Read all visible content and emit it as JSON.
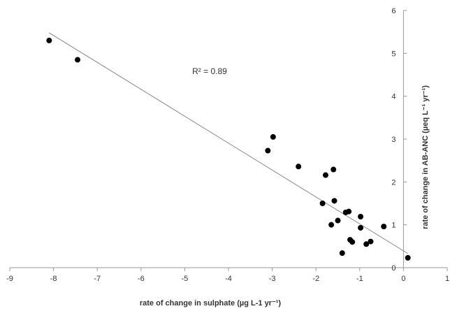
{
  "chart_data": {
    "type": "scatter",
    "title": "",
    "xlabel": "rate of change in sulphate (µg L-1  yr⁻¹)",
    "ylabel": "rate of change in AB-ANC (µeq  L⁻¹  yr⁻¹)",
    "xlim": [
      -9,
      1
    ],
    "ylim": [
      0,
      6
    ],
    "x_ticks": [
      -9,
      -8,
      -7,
      -6,
      -5,
      -4,
      -3,
      -2,
      -1,
      0,
      1
    ],
    "y_ticks": [
      0,
      1,
      2,
      3,
      4,
      5,
      6
    ],
    "grid": false,
    "points": [
      {
        "x": -8.1,
        "y": 5.3
      },
      {
        "x": -7.45,
        "y": 4.85
      },
      {
        "x": -3.1,
        "y": 2.73
      },
      {
        "x": -2.98,
        "y": 3.05
      },
      {
        "x": -2.4,
        "y": 2.36
      },
      {
        "x": -1.85,
        "y": 1.5
      },
      {
        "x": -1.78,
        "y": 2.16
      },
      {
        "x": -1.6,
        "y": 2.29
      },
      {
        "x": -1.58,
        "y": 1.56
      },
      {
        "x": -1.65,
        "y": 1.0
      },
      {
        "x": -1.5,
        "y": 1.1
      },
      {
        "x": -1.32,
        "y": 1.29
      },
      {
        "x": -1.25,
        "y": 1.31
      },
      {
        "x": -1.22,
        "y": 0.65
      },
      {
        "x": -1.17,
        "y": 0.6
      },
      {
        "x": -0.98,
        "y": 1.19
      },
      {
        "x": -0.98,
        "y": 0.93
      },
      {
        "x": -0.85,
        "y": 0.55
      },
      {
        "x": -0.75,
        "y": 0.61
      },
      {
        "x": -0.45,
        "y": 0.96
      },
      {
        "x": -1.4,
        "y": 0.34
      },
      {
        "x": 0.1,
        "y": 0.23
      }
    ],
    "trendline": {
      "x": [
        -8.1,
        0.1
      ],
      "y": [
        5.48,
        0.33
      ]
    },
    "annotation": "R² = 0.89",
    "colors": {
      "points": "#000000",
      "trendline": "#888888",
      "axis": "#999999"
    }
  }
}
